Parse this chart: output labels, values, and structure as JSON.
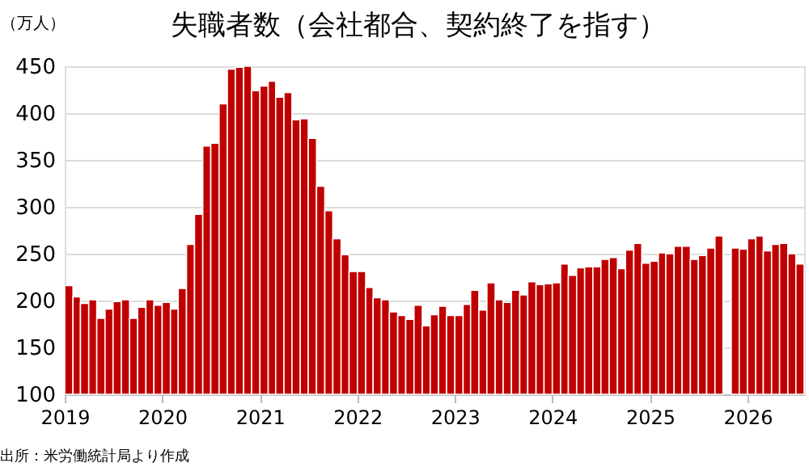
{
  "chart_data": {
    "type": "bar",
    "title": "失職者数（会社都合、契約終了を指す）",
    "ylabel": "（万人）",
    "annotations": [
      "出所：米労働統計局より作成"
    ],
    "x": [
      "2019-01",
      "2019-02",
      "2019-03",
      "2019-04",
      "2019-05",
      "2019-06",
      "2019-07",
      "2019-08",
      "2019-09",
      "2019-10",
      "2019-11",
      "2019-12",
      "2020-01",
      "2020-02",
      "2020-03",
      "2020-04",
      "2020-05",
      "2020-06",
      "2020-07",
      "2020-08",
      "2020-09",
      "2020-10",
      "2020-11",
      "2020-12",
      "2021-01",
      "2021-02",
      "2021-03",
      "2021-04",
      "2021-05",
      "2021-06",
      "2021-07",
      "2021-08",
      "2021-09",
      "2021-10",
      "2021-11",
      "2021-12",
      "2022-01",
      "2022-02",
      "2022-03",
      "2022-04",
      "2022-05",
      "2022-06",
      "2022-07",
      "2022-08",
      "2022-09",
      "2022-10",
      "2022-11",
      "2022-12",
      "2023-01",
      "2023-02",
      "2023-03",
      "2023-04",
      "2023-05",
      "2023-06",
      "2023-07",
      "2023-08",
      "2023-09",
      "2023-10",
      "2023-11",
      "2023-12",
      "2024-01",
      "2024-02",
      "2024-03",
      "2024-04",
      "2024-05",
      "2024-06",
      "2024-07",
      "2024-08",
      "2024-09",
      "2024-10",
      "2024-11",
      "2024-12",
      "2025-01",
      "2025-02",
      "2025-03",
      "2025-04",
      "2025-05",
      "2025-06",
      "2025-07",
      "2025-08",
      "2025-09",
      "2025-10",
      "2025-11",
      "2025-12",
      "2026-01",
      "2026-02",
      "2026-03",
      "2026-04",
      "2026-05",
      "2026-06",
      "2026-07"
    ],
    "series": [
      {
        "color": "#c00000",
        "values": [
          216,
          204,
          197,
          201,
          181,
          191,
          199,
          201,
          181,
          193,
          201,
          195,
          198,
          191,
          213,
          260,
          292,
          365,
          368,
          410,
          447,
          449,
          450,
          424,
          429,
          434,
          417,
          422,
          393,
          394,
          373,
          322,
          296,
          266,
          249,
          231,
          231,
          214,
          203,
          201,
          188,
          184,
          180,
          195,
          173,
          185,
          194,
          184,
          184,
          196,
          211,
          190,
          219,
          201,
          198,
          211,
          206,
          220,
          217,
          218,
          219,
          239,
          227,
          235,
          236,
          236,
          244,
          246,
          234,
          254,
          261,
          240,
          242,
          251,
          250,
          258,
          258,
          244,
          248,
          256,
          269,
          null,
          256,
          255,
          266,
          269,
          253,
          260,
          261,
          250,
          239
        ]
      }
    ],
    "xlim": [
      "2019-01",
      "2026-08"
    ],
    "xticks": [
      {
        "value": "2019-01",
        "label": "2019"
      },
      {
        "value": "2020-01",
        "label": "2020"
      },
      {
        "value": "2021-01",
        "label": "2021"
      },
      {
        "value": "2022-01",
        "label": "2022"
      },
      {
        "value": "2023-01",
        "label": "2023"
      },
      {
        "value": "2024-01",
        "label": "2024"
      },
      {
        "value": "2025-01",
        "label": "2025"
      },
      {
        "value": "2026-01",
        "label": "2026"
      }
    ],
    "ylim": [
      100,
      450
    ],
    "yticks": [
      100,
      150,
      200,
      250,
      300,
      350,
      400,
      450
    ],
    "grid": "y",
    "legend": false
  }
}
